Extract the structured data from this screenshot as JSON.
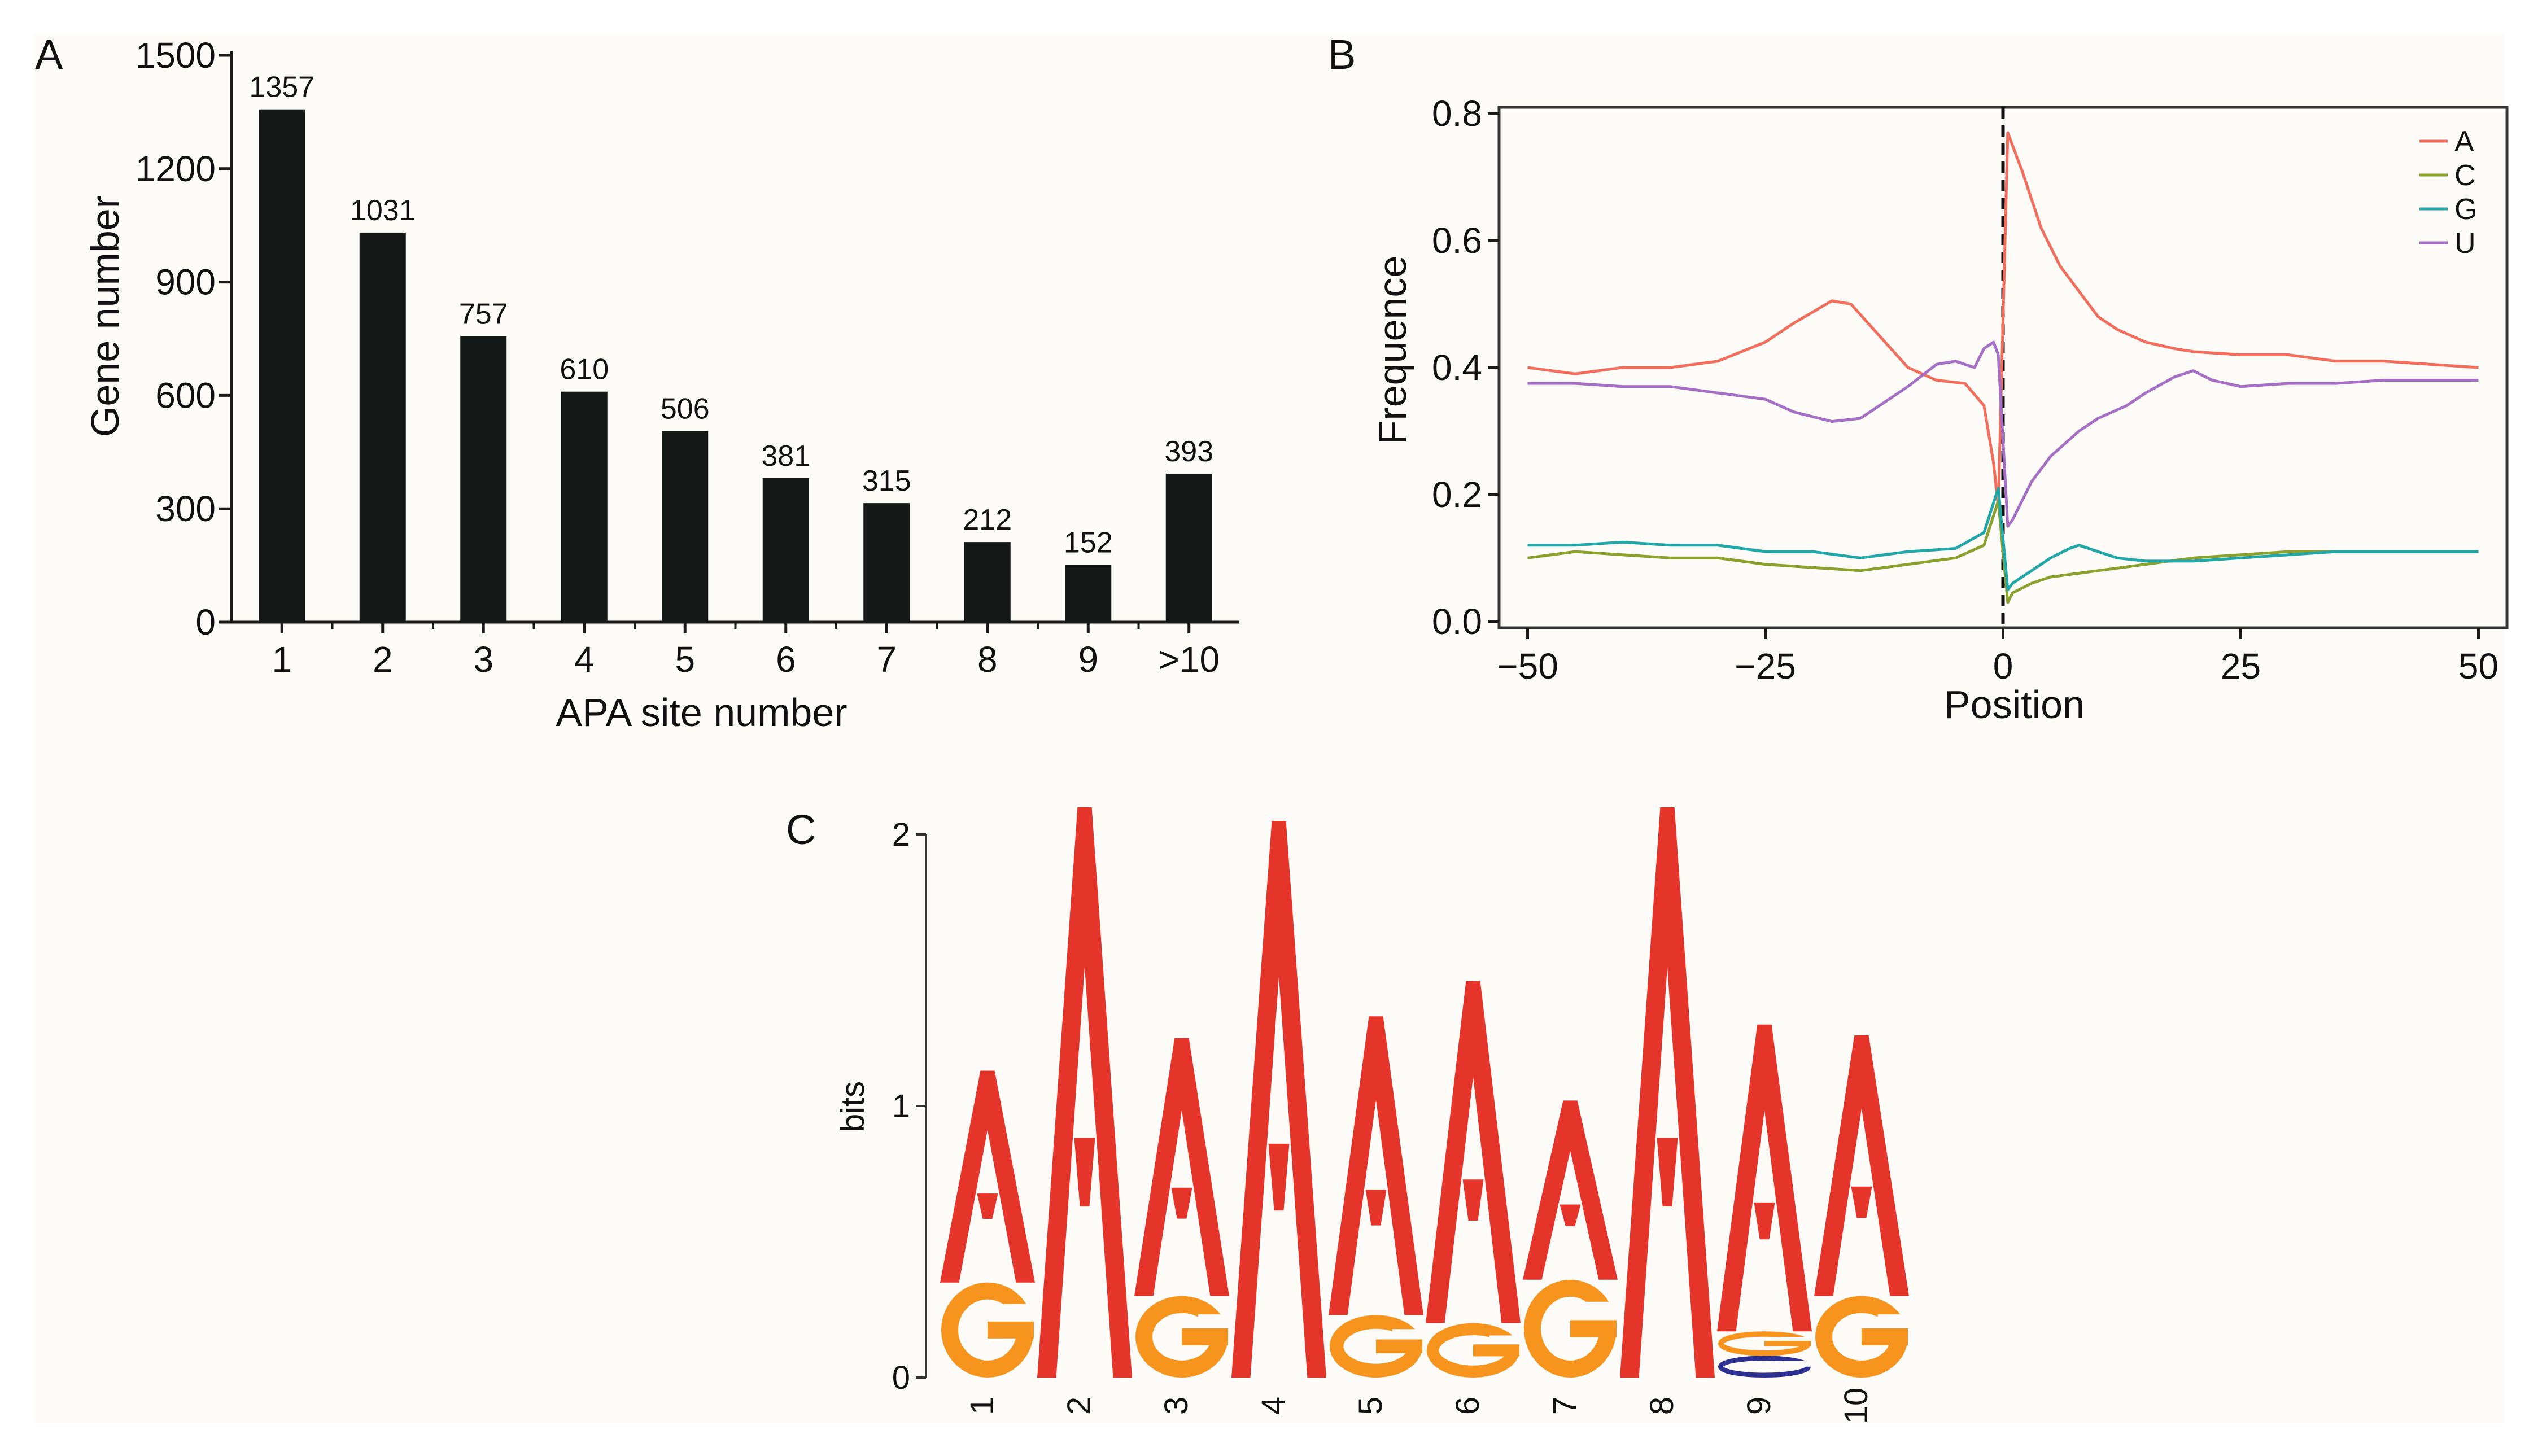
{
  "panel_labels": [
    "A",
    "B",
    "C"
  ],
  "chart_data": [
    {
      "panel": "A",
      "type": "bar",
      "categories": [
        "1",
        "2",
        "3",
        "4",
        "5",
        "6",
        "7",
        "8",
        "9",
        ">10"
      ],
      "values": [
        1357,
        1031,
        757,
        610,
        506,
        381,
        315,
        212,
        152,
        393
      ],
      "data_labels": [
        "1357",
        "1031",
        "757",
        "610",
        "506",
        "381",
        "315",
        "212",
        "152",
        "393"
      ],
      "xlabel": "APA site number",
      "ylabel": "Gene number",
      "ylim": [
        0,
        1500
      ],
      "yticks": [
        0,
        300,
        600,
        900,
        1200,
        1500
      ],
      "bar_color": "#151a19",
      "grid": false
    },
    {
      "panel": "B",
      "type": "line",
      "xlabel": "Position",
      "ylabel": "Frequence",
      "xlim": [
        -53,
        53
      ],
      "ylim": [
        -0.01,
        0.81
      ],
      "xticks": [
        -50,
        -25,
        0,
        25,
        50
      ],
      "xtick_labels": [
        "−50",
        "−25",
        "0",
        "25",
        "50"
      ],
      "yticks": [
        0.0,
        0.2,
        0.4,
        0.6,
        0.8
      ],
      "ytick_labels": [
        "0.0",
        "0.2",
        "0.4",
        "0.6",
        "0.8"
      ],
      "vline_x": 0,
      "legend_position": "top-right",
      "grid": false,
      "series": [
        {
          "name": "A",
          "color": "#f26d5b",
          "points": [
            [
              -50,
              0.4
            ],
            [
              -45,
              0.39
            ],
            [
              -40,
              0.4
            ],
            [
              -35,
              0.4
            ],
            [
              -30,
              0.41
            ],
            [
              -25,
              0.44
            ],
            [
              -22,
              0.47
            ],
            [
              -18,
              0.505
            ],
            [
              -16,
              0.5
            ],
            [
              -13,
              0.45
            ],
            [
              -10,
              0.4
            ],
            [
              -7,
              0.38
            ],
            [
              -4,
              0.375
            ],
            [
              -2,
              0.34
            ],
            [
              -1,
              0.25
            ],
            [
              -0.5,
              0.18
            ],
            [
              0.5,
              0.77
            ],
            [
              2,
              0.71
            ],
            [
              4,
              0.62
            ],
            [
              6,
              0.56
            ],
            [
              8,
              0.52
            ],
            [
              10,
              0.48
            ],
            [
              12,
              0.46
            ],
            [
              15,
              0.44
            ],
            [
              18,
              0.43
            ],
            [
              20,
              0.425
            ],
            [
              25,
              0.42
            ],
            [
              30,
              0.42
            ],
            [
              35,
              0.41
            ],
            [
              40,
              0.41
            ],
            [
              45,
              0.405
            ],
            [
              50,
              0.4
            ]
          ]
        },
        {
          "name": "C",
          "color": "#8aa12e",
          "points": [
            [
              -50,
              0.1
            ],
            [
              -45,
              0.11
            ],
            [
              -40,
              0.105
            ],
            [
              -35,
              0.1
            ],
            [
              -30,
              0.1
            ],
            [
              -25,
              0.09
            ],
            [
              -20,
              0.085
            ],
            [
              -15,
              0.08
            ],
            [
              -10,
              0.09
            ],
            [
              -5,
              0.1
            ],
            [
              -2,
              0.12
            ],
            [
              -0.5,
              0.19
            ],
            [
              0.5,
              0.03
            ],
            [
              1,
              0.045
            ],
            [
              3,
              0.06
            ],
            [
              5,
              0.07
            ],
            [
              10,
              0.08
            ],
            [
              15,
              0.09
            ],
            [
              20,
              0.1
            ],
            [
              25,
              0.105
            ],
            [
              30,
              0.11
            ],
            [
              35,
              0.11
            ],
            [
              40,
              0.11
            ],
            [
              45,
              0.11
            ],
            [
              50,
              0.11
            ]
          ]
        },
        {
          "name": "G",
          "color": "#21a7a7",
          "points": [
            [
              -50,
              0.12
            ],
            [
              -45,
              0.12
            ],
            [
              -40,
              0.125
            ],
            [
              -35,
              0.12
            ],
            [
              -30,
              0.12
            ],
            [
              -25,
              0.11
            ],
            [
              -20,
              0.11
            ],
            [
              -15,
              0.1
            ],
            [
              -10,
              0.11
            ],
            [
              -5,
              0.115
            ],
            [
              -2,
              0.14
            ],
            [
              -0.5,
              0.21
            ],
            [
              0.5,
              0.05
            ],
            [
              1,
              0.06
            ],
            [
              3,
              0.08
            ],
            [
              5,
              0.1
            ],
            [
              7,
              0.115
            ],
            [
              8,
              0.12
            ],
            [
              10,
              0.11
            ],
            [
              12,
              0.1
            ],
            [
              15,
              0.095
            ],
            [
              20,
              0.095
            ],
            [
              25,
              0.1
            ],
            [
              30,
              0.105
            ],
            [
              35,
              0.11
            ],
            [
              40,
              0.11
            ],
            [
              45,
              0.11
            ],
            [
              50,
              0.11
            ]
          ]
        },
        {
          "name": "U",
          "color": "#a66fc6",
          "points": [
            [
              -50,
              0.375
            ],
            [
              -45,
              0.375
            ],
            [
              -40,
              0.37
            ],
            [
              -35,
              0.37
            ],
            [
              -30,
              0.36
            ],
            [
              -25,
              0.35
            ],
            [
              -22,
              0.33
            ],
            [
              -18,
              0.315
            ],
            [
              -15,
              0.32
            ],
            [
              -13,
              0.34
            ],
            [
              -10,
              0.37
            ],
            [
              -7,
              0.405
            ],
            [
              -5,
              0.41
            ],
            [
              -3,
              0.4
            ],
            [
              -2,
              0.43
            ],
            [
              -1,
              0.44
            ],
            [
              -0.5,
              0.42
            ],
            [
              0.5,
              0.15
            ],
            [
              1,
              0.16
            ],
            [
              3,
              0.22
            ],
            [
              5,
              0.26
            ],
            [
              8,
              0.3
            ],
            [
              10,
              0.32
            ],
            [
              13,
              0.34
            ],
            [
              15,
              0.36
            ],
            [
              18,
              0.385
            ],
            [
              20,
              0.395
            ],
            [
              22,
              0.38
            ],
            [
              25,
              0.37
            ],
            [
              30,
              0.375
            ],
            [
              35,
              0.375
            ],
            [
              40,
              0.38
            ],
            [
              45,
              0.38
            ],
            [
              50,
              0.38
            ]
          ]
        }
      ]
    },
    {
      "panel": "C",
      "type": "sequence_logo",
      "ylabel": "bits",
      "ylim": [
        0,
        2
      ],
      "yticks": [
        0,
        1,
        2
      ],
      "positions": [
        "1",
        "2",
        "3",
        "4",
        "5",
        "6",
        "7",
        "8",
        "9",
        "10"
      ],
      "letter_colors": {
        "A": "#e5352a",
        "G": "#f7941d",
        "C": "#2e3192"
      },
      "columns": [
        {
          "stack": [
            {
              "letter": "G",
              "bits": 0.35
            },
            {
              "letter": "A",
              "bits": 0.78
            }
          ]
        },
        {
          "stack": [
            {
              "letter": "A",
              "bits": 2.1
            }
          ]
        },
        {
          "stack": [
            {
              "letter": "G",
              "bits": 0.3
            },
            {
              "letter": "A",
              "bits": 0.95
            }
          ]
        },
        {
          "stack": [
            {
              "letter": "A",
              "bits": 2.05
            }
          ]
        },
        {
          "stack": [
            {
              "letter": "G",
              "bits": 0.23
            },
            {
              "letter": "A",
              "bits": 1.1
            }
          ]
        },
        {
          "stack": [
            {
              "letter": "G",
              "bits": 0.2
            },
            {
              "letter": "A",
              "bits": 1.26
            }
          ]
        },
        {
          "stack": [
            {
              "letter": "G",
              "bits": 0.36
            },
            {
              "letter": "A",
              "bits": 0.66
            }
          ]
        },
        {
          "stack": [
            {
              "letter": "A",
              "bits": 2.1
            }
          ]
        },
        {
          "stack": [
            {
              "letter": "C",
              "bits": 0.08
            },
            {
              "letter": "G",
              "bits": 0.09
            },
            {
              "letter": "A",
              "bits": 1.13
            }
          ]
        },
        {
          "stack": [
            {
              "letter": "G",
              "bits": 0.3
            },
            {
              "letter": "A",
              "bits": 0.96
            }
          ]
        }
      ]
    }
  ]
}
